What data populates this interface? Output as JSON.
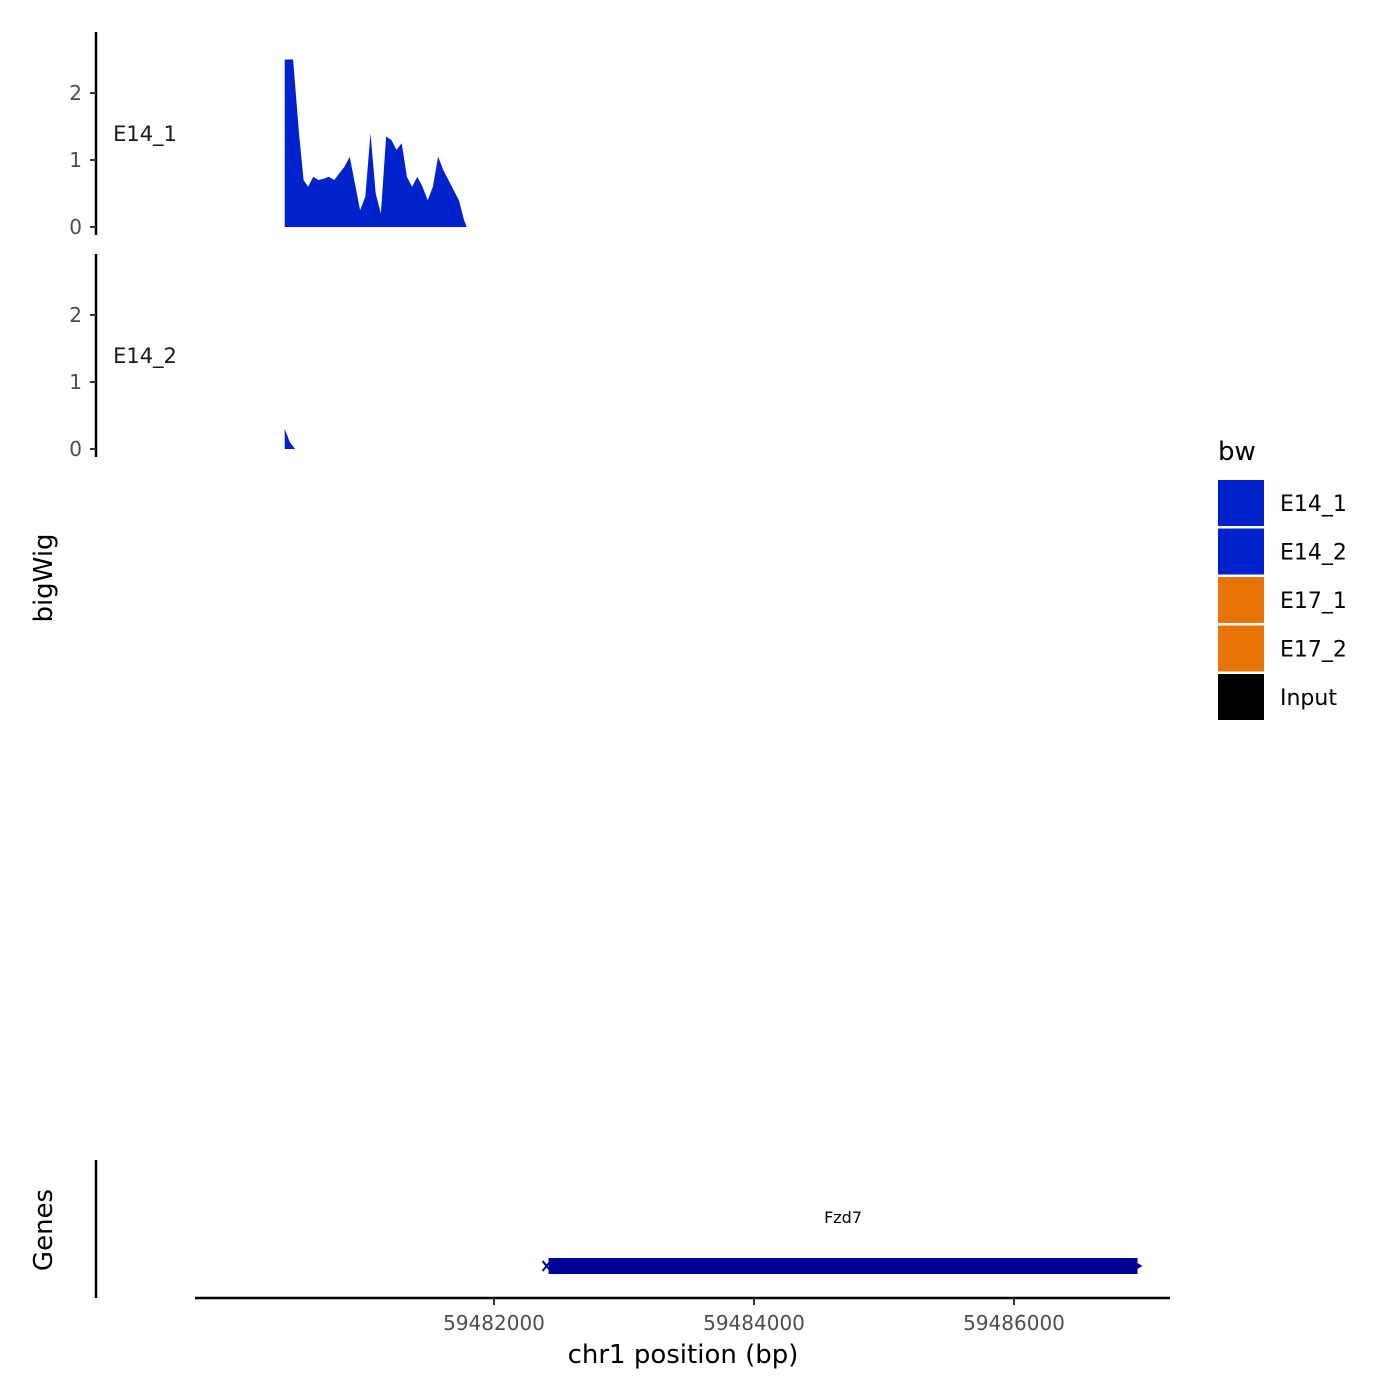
{
  "chart_data": {
    "type": "area",
    "ylabel": "bigWig",
    "xlabel": "chr1 position (bp)",
    "genes_label": "Genes",
    "xlim": [
      59479700,
      59487200
    ],
    "x_ticks": [
      59482000,
      59484000,
      59486000
    ],
    "x_tick_labels": [
      "59482000",
      "59484000",
      "59486000"
    ],
    "ylim": [
      0,
      2.9
    ],
    "y_ticks": [
      0,
      1,
      2
    ],
    "y_tick_labels": [
      "0",
      "1",
      "2"
    ],
    "legend": {
      "title": "bw",
      "entries": [
        {
          "label": "E14_1",
          "color": "#0022cc"
        },
        {
          "label": "E14_2",
          "color": "#0022cc"
        },
        {
          "label": "E17_1",
          "color": "#e87306"
        },
        {
          "label": "E17_2",
          "color": "#e87306"
        },
        {
          "label": "Input",
          "color": "#000000"
        }
      ]
    },
    "series": [
      {
        "name": "E14_1",
        "color": "#0022cc",
        "points": [
          [
            59480390,
            2.5
          ],
          [
            59480425,
            2.5
          ],
          [
            59480455,
            2.5
          ],
          [
            59480500,
            1.4
          ],
          [
            59480535,
            0.7
          ],
          [
            59480570,
            0.6
          ],
          [
            59480610,
            0.75
          ],
          [
            59480650,
            0.7
          ],
          [
            59480690,
            0.72
          ],
          [
            59480730,
            0.75
          ],
          [
            59480770,
            0.7
          ],
          [
            59480810,
            0.8
          ],
          [
            59480850,
            0.9
          ],
          [
            59480890,
            1.05
          ],
          [
            59480930,
            0.65
          ],
          [
            59480970,
            0.25
          ],
          [
            59481010,
            0.45
          ],
          [
            59481050,
            1.4
          ],
          [
            59481090,
            0.5
          ],
          [
            59481130,
            0.2
          ],
          [
            59481170,
            1.35
          ],
          [
            59481210,
            1.3
          ],
          [
            59481250,
            1.15
          ],
          [
            59481290,
            1.25
          ],
          [
            59481330,
            0.75
          ],
          [
            59481370,
            0.6
          ],
          [
            59481410,
            0.75
          ],
          [
            59481450,
            0.6
          ],
          [
            59481490,
            0.4
          ],
          [
            59481530,
            0.6
          ],
          [
            59481570,
            1.05
          ],
          [
            59481610,
            0.85
          ],
          [
            59481650,
            0.7
          ],
          [
            59481690,
            0.55
          ],
          [
            59481730,
            0.4
          ],
          [
            59481770,
            0.1
          ],
          [
            59481790,
            0.0
          ]
        ]
      },
      {
        "name": "E14_2",
        "color": "#0022cc",
        "points": [
          [
            59480390,
            0.3
          ],
          [
            59480430,
            0.1
          ],
          [
            59480470,
            0.0
          ]
        ]
      }
    ],
    "genes": [
      {
        "name": "Fzd7",
        "start": 59482420,
        "end": 59486950,
        "strand": "+",
        "color": "#000099"
      }
    ]
  }
}
